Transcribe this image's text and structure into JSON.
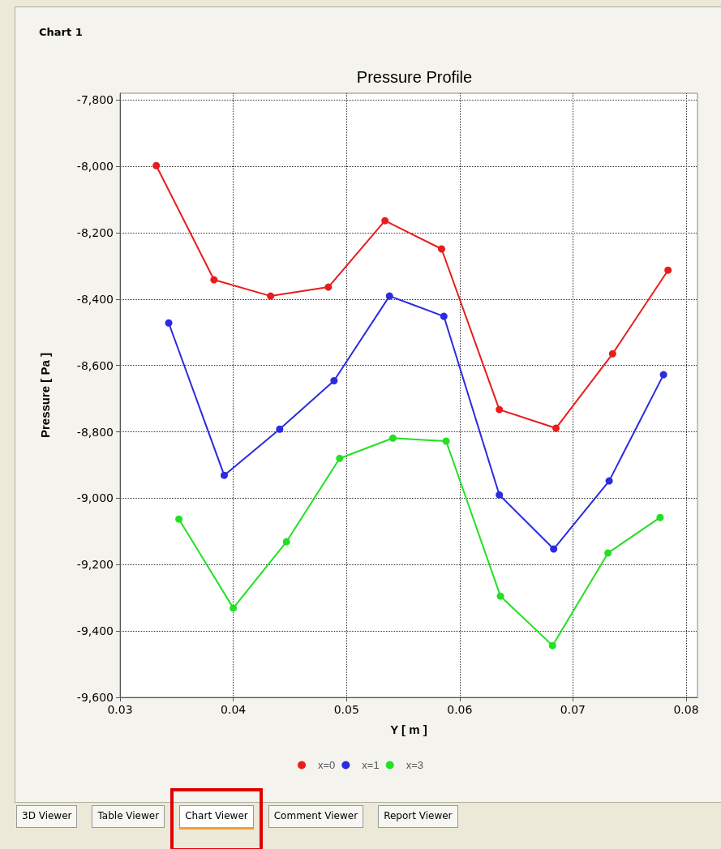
{
  "chart_data": {
    "type": "line",
    "title": "Pressure Profile",
    "subtitle": "Chart 1",
    "xlabel": "Y [ m ]",
    "ylabel": "Pressure [ Pa ]",
    "xlim": [
      0.03,
      0.081
    ],
    "xticks": [
      0.03,
      0.04,
      0.05,
      0.06,
      0.07,
      0.08
    ],
    "ylim": [
      -9600,
      -7780
    ],
    "yticks": [
      {
        "value": -9600,
        "label": "-9,600"
      },
      {
        "value": -9400,
        "label": "-9,400"
      },
      {
        "value": -9200,
        "label": "-9,200"
      },
      {
        "value": -9000,
        "label": "-9,000"
      },
      {
        "value": -8800,
        "label": "-8,800"
      },
      {
        "value": -8600,
        "label": "-8,600"
      },
      {
        "value": -8400,
        "label": "-8,400"
      },
      {
        "value": -8200,
        "label": "-8,200"
      },
      {
        "value": -8000,
        "label": "-8,000"
      },
      {
        "value": -7800,
        "label": "-7,800"
      }
    ],
    "grid": true,
    "legend": "bottom",
    "marker": "circle",
    "line_style": "solid",
    "series": [
      {
        "name": "x=0",
        "color": "#e81c1c",
        "x": [
          0.0332,
          0.0383,
          0.0433,
          0.0484,
          0.0534,
          0.0584,
          0.0635,
          0.0685,
          0.0735,
          0.0784
        ],
        "values": [
          -7998,
          -8342,
          -8391,
          -8364,
          -8164,
          -8249,
          -8733,
          -8789,
          -8565,
          -8313
        ]
      },
      {
        "name": "x=1",
        "color": "#2b2be0",
        "x": [
          0.0343,
          0.0392,
          0.0441,
          0.0489,
          0.0538,
          0.0586,
          0.0635,
          0.0683,
          0.0732,
          0.078
        ],
        "values": [
          -8472,
          -8931,
          -8792,
          -8646,
          -8391,
          -8452,
          -8990,
          -9153,
          -8948,
          -8628
        ]
      },
      {
        "name": "x=3",
        "color": "#22e022",
        "x": [
          0.0352,
          0.04,
          0.0447,
          0.0494,
          0.0541,
          0.0588,
          0.0636,
          0.0682,
          0.0731,
          0.0777
        ],
        "values": [
          -9063,
          -9331,
          -9131,
          -8880,
          -8819,
          -8828,
          -9295,
          -9444,
          -9165,
          -9058
        ]
      }
    ],
    "annotations": [
      "3D Viewer",
      "Table Viewer",
      "Chart Viewer",
      "Comment Viewer",
      "Report Viewer"
    ]
  }
}
